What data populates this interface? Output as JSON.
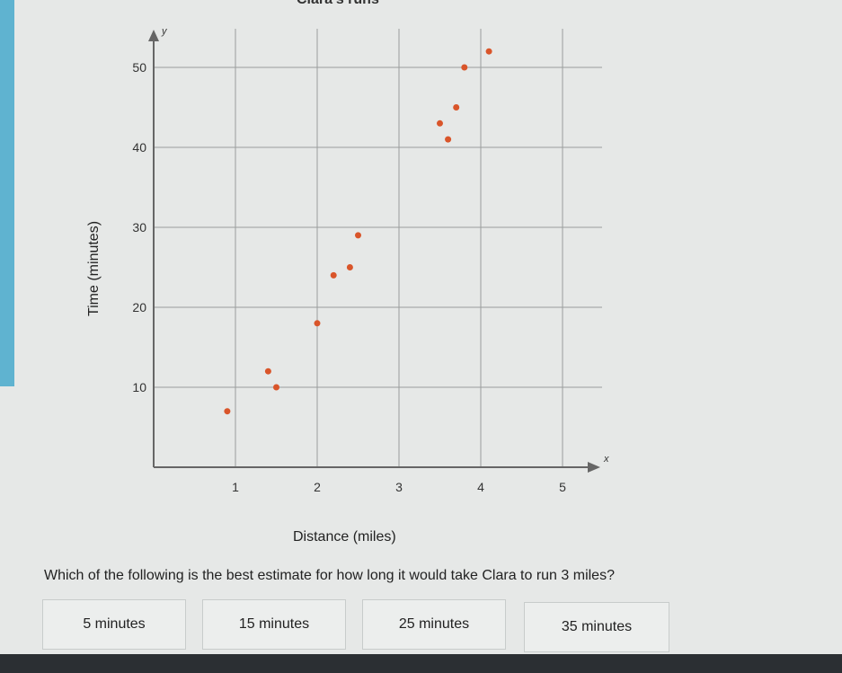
{
  "chart_data": {
    "type": "scatter",
    "title": "Clara's runs",
    "xlabel": "Distance (miles)",
    "ylabel": "Time (minutes)",
    "x_axis_letter": "x",
    "y_axis_letter": "y",
    "xlim": [
      0,
      5.5
    ],
    "ylim": [
      0,
      55
    ],
    "x_ticks": [
      1,
      2,
      3,
      4,
      5
    ],
    "y_ticks": [
      10,
      20,
      30,
      40,
      50
    ],
    "grid": true,
    "point_color": "#d9552a",
    "points": [
      {
        "x": 0.9,
        "y": 7
      },
      {
        "x": 1.4,
        "y": 12
      },
      {
        "x": 1.5,
        "y": 10
      },
      {
        "x": 2.0,
        "y": 18
      },
      {
        "x": 2.2,
        "y": 24
      },
      {
        "x": 2.4,
        "y": 25
      },
      {
        "x": 2.5,
        "y": 29
      },
      {
        "x": 3.5,
        "y": 43
      },
      {
        "x": 3.6,
        "y": 41
      },
      {
        "x": 3.7,
        "y": 45
      },
      {
        "x": 3.8,
        "y": 50
      },
      {
        "x": 4.1,
        "y": 52
      }
    ]
  },
  "question": "Which of the following is the best estimate for how long it would take Clara to run 3 miles?",
  "choices": [
    "5 minutes",
    "15 minutes",
    "25 minutes",
    "35 minutes"
  ]
}
